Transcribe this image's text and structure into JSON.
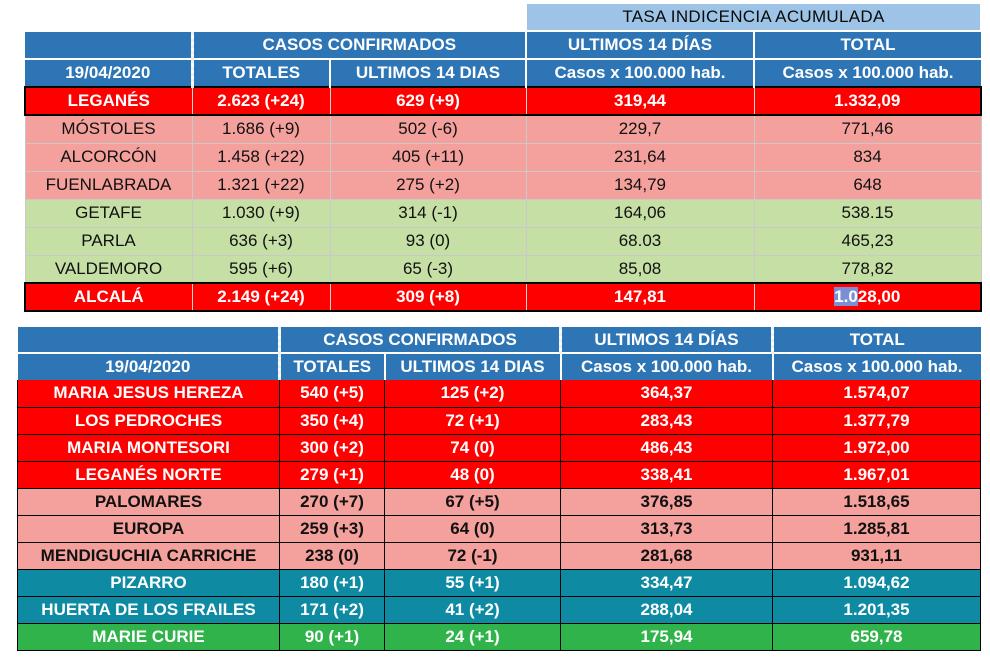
{
  "banner": "TASA INDICENCIA  ACUMULADA",
  "table1": {
    "header_top": [
      "",
      "CASOS  CONFIRMADOS",
      "ULTIMOS 14 DÍAS",
      "TOTAL"
    ],
    "header_sub": [
      "19/04/2020",
      "TOTALES",
      "ULTIMOS 14 DIAS",
      "Casos x 100.000 hab.",
      "Casos x 100.000 hab."
    ],
    "rows": [
      {
        "style": "red",
        "cells": [
          "LEGANÉS",
          "2.623 (+24)",
          "629 (+9)",
          "319,44",
          "1.332,09"
        ]
      },
      {
        "style": "pink",
        "cells": [
          "MÓSTOLES",
          "1.686 (+9)",
          "502 (-6)",
          "229,7",
          "771,46"
        ]
      },
      {
        "style": "pink",
        "cells": [
          "ALCORCÓN",
          "1.458 (+22)",
          "405 (+11)",
          "231,64",
          "834"
        ]
      },
      {
        "style": "pink",
        "cells": [
          "FUENLABRADA",
          "1.321 (+22)",
          "275 (+2)",
          "134,79",
          "648"
        ]
      },
      {
        "style": "green",
        "cells": [
          "GETAFE",
          "1.030 (+9)",
          "314 (-1)",
          "164,06",
          "538.15"
        ]
      },
      {
        "style": "green",
        "cells": [
          "PARLA",
          "636 (+3)",
          "93 (0)",
          "68.03",
          "465,23"
        ]
      },
      {
        "style": "green",
        "cells": [
          "VALDEMORO",
          "595 (+6)",
          "65 (-3)",
          "85,08",
          "778,82"
        ]
      },
      {
        "style": "red",
        "cells": [
          "ALCALÁ",
          "2.149 (+24)",
          "309 (+8)",
          "147,81",
          "1.028,00"
        ]
      }
    ]
  },
  "table2": {
    "header_top": [
      "",
      "CASOS  CONFIRMADOS",
      "ULTIMOS 14 DÍAS",
      "TOTAL"
    ],
    "header_sub": [
      "19/04/2020",
      "TOTALES",
      "ULTIMOS 14 DIAS",
      "Casos x 100.000 hab.",
      "Casos x 100.000 hab."
    ],
    "rows": [
      {
        "style": "red",
        "cells": [
          "MARIA JESUS HEREZA",
          "540 (+5)",
          "125 (+2)",
          "364,37",
          "1.574,07"
        ]
      },
      {
        "style": "red",
        "cells": [
          "LOS PEDROCHES",
          "350 (+4)",
          "72 (+1)",
          "283,43",
          "1.377,79"
        ]
      },
      {
        "style": "red",
        "cells": [
          "MARIA MONTESORI",
          "300 (+2)",
          "74 (0)",
          "486,43",
          "1.972,00"
        ]
      },
      {
        "style": "red",
        "cells": [
          "LEGANÉS NORTE",
          "279 (+1)",
          "48 (0)",
          "338,41",
          "1.967,01"
        ]
      },
      {
        "style": "pink",
        "cells": [
          "PALOMARES",
          "270 (+7)",
          "67 (+5)",
          "376,85",
          "1.518,65"
        ]
      },
      {
        "style": "pink",
        "cells": [
          "EUROPA",
          "259 (+3)",
          "64 (0)",
          "313,73",
          "1.285,81"
        ]
      },
      {
        "style": "pink",
        "cells": [
          "MENDIGUCHIA CARRICHE",
          "238 (0)",
          "72 (-1)",
          "281,68",
          "931,11"
        ]
      },
      {
        "style": "teal",
        "cells": [
          "PIZARRO",
          "180 (+1)",
          "55 (+1)",
          "334,47",
          "1.094,62"
        ]
      },
      {
        "style": "teal",
        "cells": [
          "HUERTA DE LOS FRAILES",
          "171 (+2)",
          "41 (+2)",
          "288,04",
          "1.201,35"
        ]
      },
      {
        "style": "brightgreen",
        "cells": [
          "MARIE CURIE",
          "90 (+1)",
          "24 (+1)",
          "175,94",
          "659,78"
        ]
      }
    ]
  },
  "colors": {
    "header_blue": "#2e75b6",
    "banner_blue": "#9dc3e6",
    "red": "#ff0000",
    "pink": "#f4a09c",
    "light_green": "#c5dfa5",
    "teal": "#0f8aa3",
    "bright_green": "#2fb34a"
  }
}
